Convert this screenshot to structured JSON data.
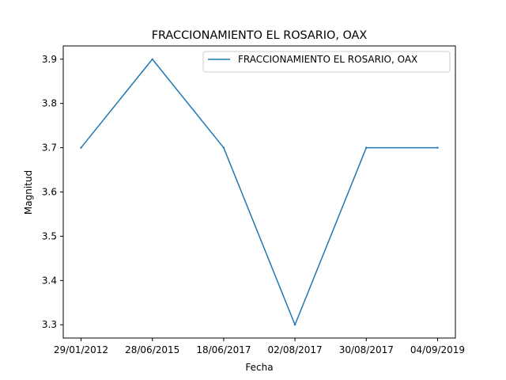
{
  "chart_data": {
    "type": "line",
    "title": "FRACCIONAMIENTO EL ROSARIO, OAX",
    "xlabel": "Fecha",
    "ylabel": "Magnitud",
    "categories": [
      "29/01/2012",
      "28/06/2015",
      "18/06/2017",
      "02/08/2017",
      "30/08/2017",
      "04/09/2019"
    ],
    "series": [
      {
        "name": "FRACCIONAMIENTO EL ROSARIO, OAX",
        "values": [
          3.7,
          3.9,
          3.7,
          3.3,
          3.7,
          3.7
        ],
        "color": "#1f77b4"
      }
    ],
    "yticks": [
      "3.3",
      "3.4",
      "3.5",
      "3.6",
      "3.7",
      "3.8",
      "3.9"
    ],
    "ylim": [
      3.27,
      3.93
    ],
    "grid": false,
    "legend_position": "upper right"
  }
}
